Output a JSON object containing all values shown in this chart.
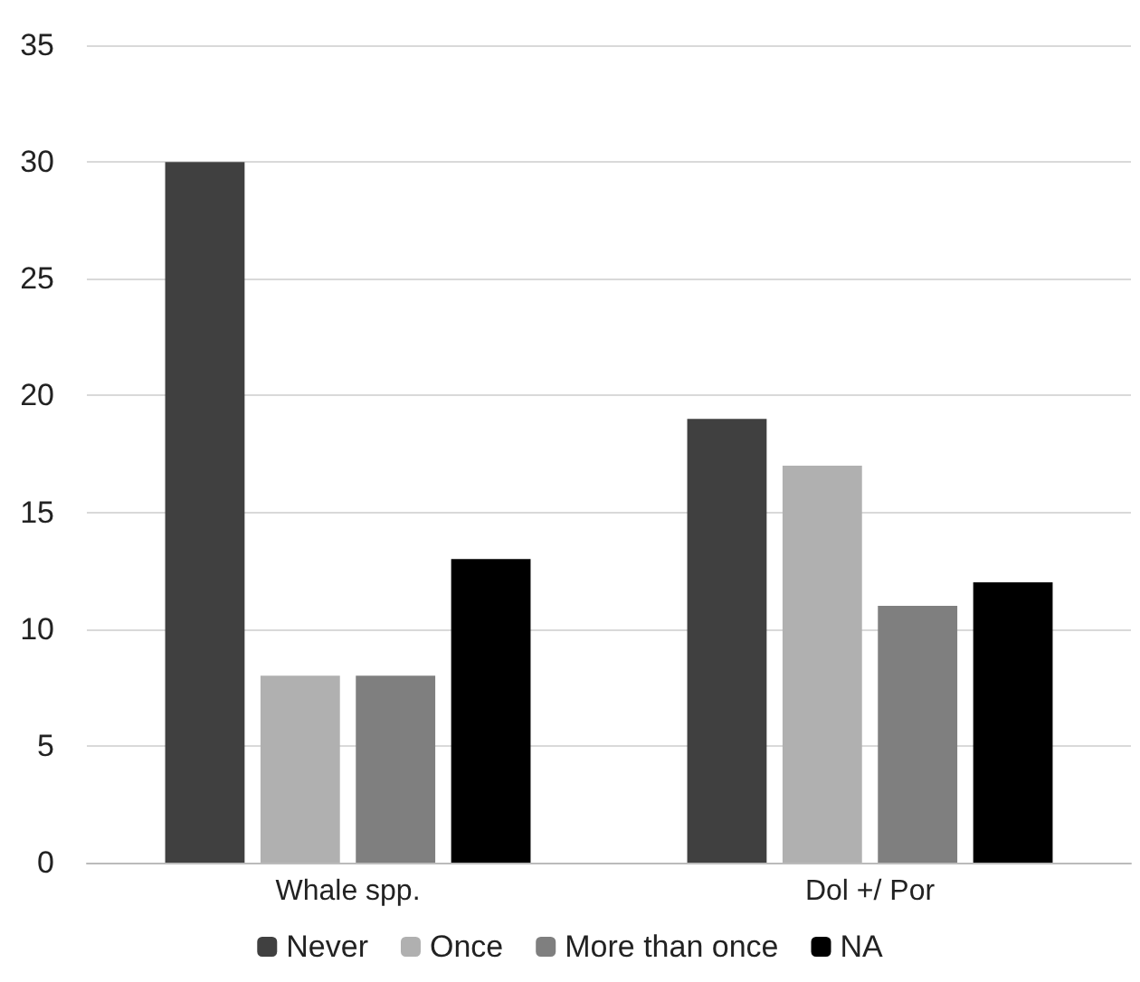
{
  "chart_data": {
    "type": "bar",
    "categories": [
      "Whale spp.",
      "Dol +/ Por"
    ],
    "series": [
      {
        "name": "Never",
        "color": "#404040",
        "values": [
          30,
          19
        ]
      },
      {
        "name": "Once",
        "color": "#b0b0b0",
        "values": [
          8,
          17
        ]
      },
      {
        "name": "More than once",
        "color": "#7f7f7f",
        "values": [
          8,
          11
        ]
      },
      {
        "name": "NA",
        "color": "#000000",
        "values": [
          13,
          12
        ]
      }
    ],
    "ylim": [
      0,
      35
    ],
    "yticks": [
      0,
      5,
      10,
      15,
      20,
      25,
      30,
      35
    ],
    "grid": "y",
    "legend": "bottom"
  }
}
